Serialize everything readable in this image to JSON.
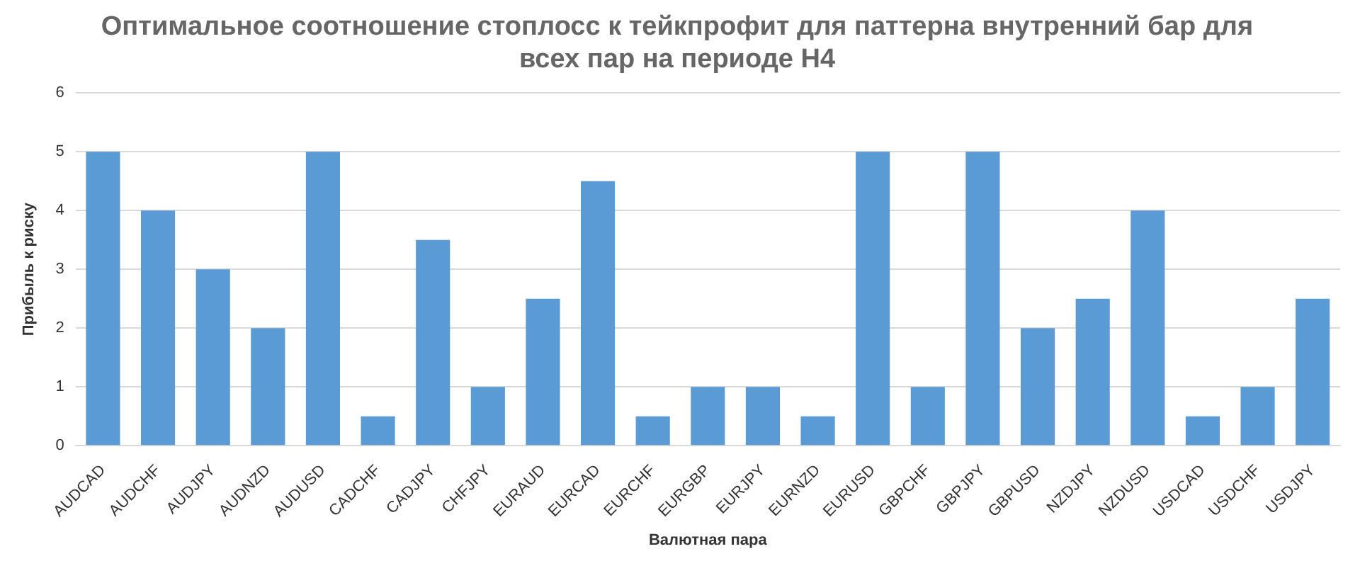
{
  "chart_data": {
    "type": "bar",
    "title": [
      "Оптимальное соотношение стоплосс к тейкпрофит для паттерна внутренний бар для",
      "всех пар на периоде H4"
    ],
    "xlabel": "Валютная пара",
    "ylabel": "Прибыль к риску",
    "categories": [
      "AUDCAD",
      "AUDCHF",
      "AUDJPY",
      "AUDNZD",
      "AUDUSD",
      "CADCHF",
      "CADJPY",
      "CHFJPY",
      "EURAUD",
      "EURCAD",
      "EURCHF",
      "EURGBP",
      "EURJPY",
      "EURNZD",
      "EURUSD",
      "GBPCHF",
      "GBPJPY",
      "GBPUSD",
      "NZDJPY",
      "NZDUSD",
      "USDCAD",
      "USDCHF",
      "USDJPY"
    ],
    "values": [
      5,
      4,
      3,
      2,
      5,
      0.5,
      3.5,
      1,
      2.5,
      4.5,
      0.5,
      1,
      1,
      0.5,
      5,
      1,
      5,
      2,
      2.5,
      4,
      0.5,
      1,
      2.5
    ],
    "color": "#5b9bd5",
    "ylim": [
      0,
      6
    ],
    "yticks": [
      0,
      1,
      2,
      3,
      4,
      5,
      6
    ],
    "grid": "y",
    "legend": false
  }
}
